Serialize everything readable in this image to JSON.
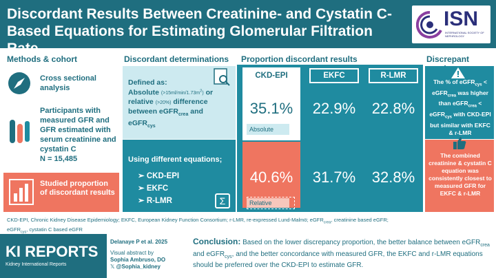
{
  "header": {
    "title": "Discordant Results Between Creatinine- and Cystatin C-Based Equations for Estimating Glomerular Filtration Rate",
    "logo_text": "ISN",
    "logo_sub": "INTERNATIONAL SOCIETY OF NEPHROLOGY"
  },
  "methods": {
    "title": "Methods & cohort",
    "item1": "Cross sectional analysis",
    "item2": "Participants with measured GFR and GFR estimated with serum creatinine and cystatin C",
    "n": "N = 15,485",
    "studied": "Studied proportion of discordant results"
  },
  "determinations": {
    "title": "Discordant determinations",
    "defined_as": "Defined as:",
    "absolute": "Absolute",
    "absolute_detail": "(>15ml/min/1.73m",
    "absolute_sup": "2",
    "absolute_close": ")",
    "or": "or",
    "relative": "relative",
    "relative_detail": "(>20%)",
    "difference": "difference between eGFR",
    "crea": "crea",
    "and": "and eGFR",
    "cys": "cys",
    "using": "Using different equations;",
    "equations": [
      "CKD-EPI",
      "EKFC",
      "R-LMR"
    ]
  },
  "proportion": {
    "title": "Proportion discordant results",
    "columns": [
      "CKD-EPI",
      "EKFC",
      "R-LMR"
    ],
    "absolute": [
      "35.1%",
      "22.9%",
      "22.8%"
    ],
    "relative": [
      "40.6%",
      "31.7%",
      "32.8%"
    ],
    "absolute_label": "Absolute",
    "relative_label": "Relative"
  },
  "discrepant": {
    "title": "Discrepant results",
    "text1_a": "The % of eGFR",
    "text1_cys": "cys",
    "text1_b": "< eGFR",
    "text1_crea": "crea",
    "text1_c": "was higher than eGFR",
    "text1_crea2": "crea",
    "text1_d": "< eGFR",
    "text1_cys2": "cys",
    "text1_e": "with CKD-EPI but similar with EKFC & r-LMR",
    "text2": "The combined creatinine & cystatin C equation was consistently closest to measured GFR for EKFC & r-LMR"
  },
  "footnote": {
    "line1": "CKD-EPI, Chronic Kidney Disease Epidemiology; EKFC, European Kidney Function Consortium; r-LMR, re-expressed Lund-Malmö; eGFR",
    "crea": "crea",
    "line1b": ", creatinine based eGFR;",
    "line2a": "eGFR",
    "cys": "cys",
    "line2b": ", cystatin C based eGFR"
  },
  "footer": {
    "journal": "KI REPORTS",
    "journal_sub": "Kidney International Reports",
    "citation": "Delanaye P et al. 2025",
    "abstract_by": "Visual abstract by",
    "author": "Sophia Ambruso, DO",
    "handle": "@Sophia_kidney",
    "conclusion_label": "Conclusion:",
    "conclusion_a": "Based on the lower discrepancy proportion, the better balance between eGFR",
    "crea": "crea",
    "conclusion_b": "and eGFR",
    "cys": "cys",
    "conclusion_c": ", and the better concordance with measured GFR, the EKFC and r-LMR equations should be preferred over the CKD-EPI to estimate GFR."
  },
  "colors": {
    "teal_dark": "#1f6e7f",
    "teal": "#1f8ba0",
    "teal_light": "#cdeaf0",
    "coral": "#ef7560"
  }
}
